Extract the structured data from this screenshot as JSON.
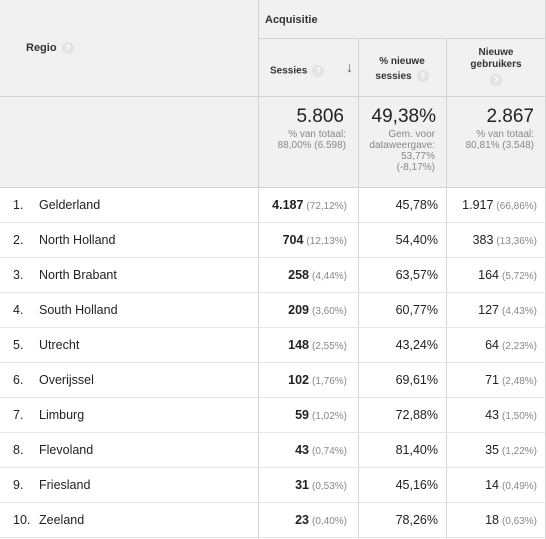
{
  "header": {
    "dimension_label": "Regio",
    "group_label": "Acquisitie",
    "col_sessies": "Sessies",
    "col_nieuwe_sessies_1": "% nieuwe",
    "col_nieuwe_sessies_2": "sessies",
    "col_nieuwe_gebruikers_1": "Nieuwe",
    "col_nieuwe_gebruikers_2": "gebruikers",
    "help_glyph": "?",
    "sort_glyph": "↓"
  },
  "summary": {
    "sessies_value": "5.806",
    "sessies_sub_1": "% van totaal:",
    "sessies_sub_2": "88,00% (6.598)",
    "nieuw_value": "49,38%",
    "nieuw_sub_1": "Gem. voor",
    "nieuw_sub_2": "dataweergave:",
    "nieuw_sub_3": "53,77%",
    "nieuw_sub_4": "(-8,17%)",
    "gebr_value": "2.867",
    "gebr_sub_1": "% van totaal:",
    "gebr_sub_2": "80,81% (3.548)"
  },
  "rows": [
    {
      "idx": "1.",
      "region": "Gelderland",
      "sessies": "4.187",
      "sessies_pct": "(72,12%)",
      "nieuw": "45,78%",
      "gebr": "1.917",
      "gebr_pct": "(66,86%)"
    },
    {
      "idx": "2.",
      "region": "North Holland",
      "sessies": "704",
      "sessies_pct": "(12,13%)",
      "nieuw": "54,40%",
      "gebr": "383",
      "gebr_pct": "(13,36%)"
    },
    {
      "idx": "3.",
      "region": "North Brabant",
      "sessies": "258",
      "sessies_pct": "(4,44%)",
      "nieuw": "63,57%",
      "gebr": "164",
      "gebr_pct": "(5,72%)"
    },
    {
      "idx": "4.",
      "region": "South Holland",
      "sessies": "209",
      "sessies_pct": "(3,60%)",
      "nieuw": "60,77%",
      "gebr": "127",
      "gebr_pct": "(4,43%)"
    },
    {
      "idx": "5.",
      "region": "Utrecht",
      "sessies": "148",
      "sessies_pct": "(2,55%)",
      "nieuw": "43,24%",
      "gebr": "64",
      "gebr_pct": "(2,23%)"
    },
    {
      "idx": "6.",
      "region": "Overijssel",
      "sessies": "102",
      "sessies_pct": "(1,76%)",
      "nieuw": "69,61%",
      "gebr": "71",
      "gebr_pct": "(2,48%)"
    },
    {
      "idx": "7.",
      "region": "Limburg",
      "sessies": "59",
      "sessies_pct": "(1,02%)",
      "nieuw": "72,88%",
      "gebr": "43",
      "gebr_pct": "(1,50%)"
    },
    {
      "idx": "8.",
      "region": "Flevoland",
      "sessies": "43",
      "sessies_pct": "(0,74%)",
      "nieuw": "81,40%",
      "gebr": "35",
      "gebr_pct": "(1,22%)"
    },
    {
      "idx": "9.",
      "region": "Friesland",
      "sessies": "31",
      "sessies_pct": "(0,53%)",
      "nieuw": "45,16%",
      "gebr": "14",
      "gebr_pct": "(0,49%)"
    },
    {
      "idx": "10.",
      "region": "Zeeland",
      "sessies": "23",
      "sessies_pct": "(0,40%)",
      "nieuw": "78,26%",
      "gebr": "18",
      "gebr_pct": "(0,63%)"
    }
  ]
}
